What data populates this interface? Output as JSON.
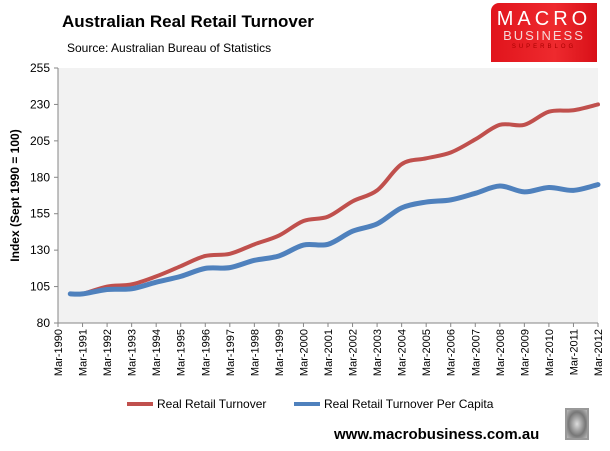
{
  "chart_data": {
    "type": "line",
    "title": "Australian Real Retail Turnover",
    "subtitle": "Source: Australian Bureau of Statistics",
    "xlabel": "",
    "ylabel": "Index (Sept 1990 = 100)",
    "ylim": [
      80,
      255
    ],
    "yticks": [
      "80",
      "105",
      "130",
      "155",
      "180",
      "205",
      "230",
      "255"
    ],
    "xticks": [
      "Mar-1990",
      "Mar-1991",
      "Mar-1992",
      "Mar-1993",
      "Mar-1994",
      "Mar-1995",
      "Mar-1996",
      "Mar-1997",
      "Mar-1998",
      "Mar-1999",
      "Mar-2000",
      "Mar-2001",
      "Mar-2002",
      "Mar-2003",
      "Mar-2004",
      "Mar-2005",
      "Mar-2006",
      "Mar-2007",
      "Mar-2008",
      "Mar-2009",
      "Mar-2010",
      "Mar-2011",
      "Mar-2012"
    ],
    "grid": false,
    "legend": "bottom",
    "x": [
      "Sep-1990",
      "Mar-1991",
      "Mar-1992",
      "Mar-1993",
      "Mar-1994",
      "Mar-1995",
      "Mar-1996",
      "Mar-1997",
      "Mar-1998",
      "Mar-1999",
      "Mar-2000",
      "Mar-2001",
      "Mar-2002",
      "Mar-2003",
      "Mar-2004",
      "Mar-2005",
      "Mar-2006",
      "Mar-2007",
      "Mar-2008",
      "Mar-2009",
      "Mar-2010",
      "Mar-2011",
      "Mar-2012"
    ],
    "series": [
      {
        "name": "Real Retail Turnover",
        "color": "#c0504d",
        "values": [
          100,
          100,
          105,
          106.5,
          112,
          119,
          126,
          127.5,
          134,
          140,
          150,
          153,
          163.5,
          171,
          189,
          193,
          197,
          206,
          216,
          216,
          225,
          226,
          230
        ]
      },
      {
        "name": "Real Retail Turnover Per Capita",
        "color": "#4f81bd",
        "values": [
          100,
          100,
          103,
          103.5,
          108,
          112,
          117.5,
          118,
          123,
          126,
          133.5,
          134,
          143,
          148,
          159,
          163,
          164.5,
          169,
          174,
          170,
          173,
          171,
          175
        ]
      }
    ]
  },
  "logo": {
    "line1": "MACRO",
    "line2": "BUSINESS",
    "line3": "SUPERBLOG"
  },
  "footer": {
    "website": "www.macrobusiness.com.au"
  }
}
